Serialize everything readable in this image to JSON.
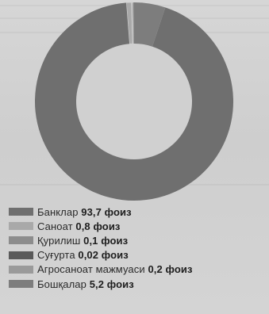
{
  "chart_data": {
    "type": "pie",
    "donut": true,
    "title": "",
    "legend_position": "bottom-left",
    "unit": "фоиз",
    "slices": [
      {
        "label": "Банклар",
        "value": 93.7,
        "value_text": "93,7 фоиз",
        "color": "#6f6f6f"
      },
      {
        "label": "Саноат",
        "value": 0.8,
        "value_text": "0,8 фоиз",
        "color": "#a9a9a9"
      },
      {
        "label": "Қурилиш",
        "value": 0.1,
        "value_text": "0,1 фоиз",
        "color": "#8c8c8c"
      },
      {
        "label": "Суғурта",
        "value": 0.02,
        "value_text": "0,02 фоиз",
        "color": "#5a5a5a"
      },
      {
        "label": "Агросаноат мажмуаси",
        "value": 0.2,
        "value_text": "0,2 фоиз",
        "color": "#9a9a9a"
      },
      {
        "label": "Бошқалар",
        "value": 5.2,
        "value_text": "5,2 фоиз",
        "color": "#7d7d7d"
      }
    ]
  }
}
